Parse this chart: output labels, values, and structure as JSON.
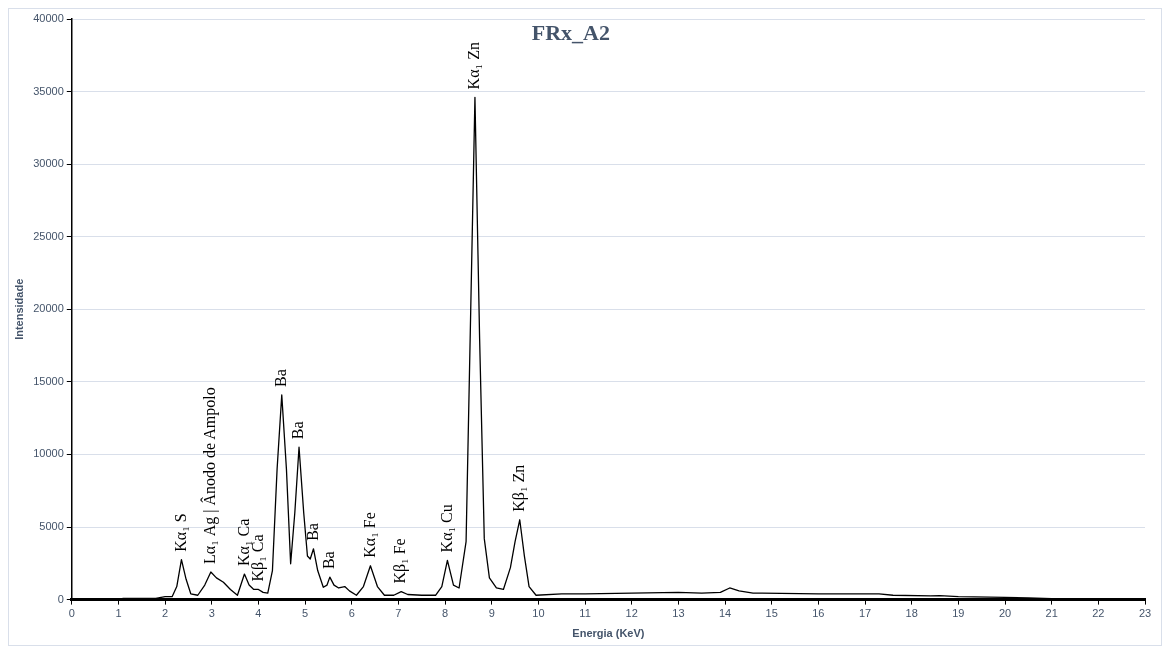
{
  "chart_data": {
    "type": "line",
    "title": "FRx_A2",
    "xlabel": "Energia (KeV)",
    "ylabel": "Intensidade",
    "xlim": [
      0,
      23
    ],
    "xticks": [
      0,
      1,
      2,
      3,
      4,
      5,
      6,
      7,
      8,
      9,
      10,
      11,
      12,
      13,
      14,
      15,
      16,
      17,
      18,
      19,
      20,
      21,
      22,
      23
    ],
    "ylim": [
      0,
      40000
    ],
    "yticks": [
      0,
      5000,
      10000,
      15000,
      20000,
      25000,
      30000,
      35000,
      40000
    ],
    "grid": "y",
    "legend": false,
    "marker": "none",
    "line_style": "solid",
    "series": [
      {
        "color": "#000000",
        "x": [
          0,
          1,
          1.1,
          1.8,
          2,
          2.15,
          2.25,
          2.35,
          2.45,
          2.55,
          2.7,
          2.85,
          2.98,
          3.1,
          3.25,
          3.4,
          3.55,
          3.7,
          3.8,
          3.9,
          4.0,
          4.1,
          4.2,
          4.3,
          4.4,
          4.5,
          4.6,
          4.69,
          4.78,
          4.87,
          4.97,
          5.05,
          5.11,
          5.18,
          5.27,
          5.39,
          5.47,
          5.53,
          5.62,
          5.72,
          5.85,
          5.95,
          6.1,
          6.25,
          6.4,
          6.55,
          6.7,
          6.9,
          7.06,
          7.2,
          7.5,
          7.8,
          7.93,
          8.05,
          8.18,
          8.3,
          8.45,
          8.55,
          8.64,
          8.74,
          8.84,
          8.95,
          9.1,
          9.25,
          9.4,
          9.5,
          9.6,
          9.7,
          9.8,
          9.95,
          10.5,
          11,
          12,
          13,
          13.5,
          13.9,
          14.1,
          14.3,
          14.6,
          16,
          17.3,
          17.6,
          18.4,
          18.6,
          19,
          20,
          20.5,
          21,
          21.8,
          22.5,
          23
        ],
        "values": [
          0,
          0,
          80,
          80,
          200,
          200,
          900,
          2750,
          1400,
          400,
          300,
          1000,
          1900,
          1500,
          1200,
          700,
          300,
          1760,
          1000,
          700,
          700,
          500,
          450,
          2000,
          9000,
          14100,
          9000,
          2470,
          6000,
          10500,
          6000,
          3000,
          2800,
          3500,
          2000,
          850,
          1000,
          1550,
          1000,
          800,
          900,
          600,
          300,
          900,
          2330,
          900,
          300,
          300,
          550,
          350,
          300,
          300,
          900,
          2700,
          1000,
          800,
          4000,
          20000,
          34600,
          18000,
          4200,
          1500,
          800,
          700,
          2200,
          4000,
          5500,
          3000,
          900,
          300,
          400,
          400,
          450,
          500,
          450,
          500,
          800,
          600,
          450,
          400,
          400,
          300,
          250,
          280,
          200,
          150,
          120,
          60,
          60,
          40,
          40
        ]
      }
    ],
    "annotations": [
      {
        "text": "Kα₁ S",
        "x": 2.35,
        "y": 2750
      },
      {
        "text": "Lα₁ Ag | Ânodo de Ampolo",
        "x": 2.98,
        "y": 1900
      },
      {
        "text": "Kα₁ Ca",
        "x": 3.7,
        "y": 1760
      },
      {
        "text": "Kβ₁ Ca",
        "x": 4.0,
        "y": 700
      },
      {
        "text": "Ba",
        "x": 4.5,
        "y": 14100
      },
      {
        "text": "Ba",
        "x": 4.87,
        "y": 10500
      },
      {
        "text": "Ba",
        "x": 5.18,
        "y": 3500
      },
      {
        "text": "Ba",
        "x": 5.53,
        "y": 1550
      },
      {
        "text": "Kα₁ Fe",
        "x": 6.4,
        "y": 2330
      },
      {
        "text": "Kβ₁ Fe",
        "x": 7.06,
        "y": 550
      },
      {
        "text": "Kα₁ Cu",
        "x": 8.05,
        "y": 2700
      },
      {
        "text": "Kα₁ Zn",
        "x": 8.64,
        "y": 34600
      },
      {
        "text": "Kβ₁ Zn",
        "x": 9.6,
        "y": 5500
      }
    ]
  }
}
